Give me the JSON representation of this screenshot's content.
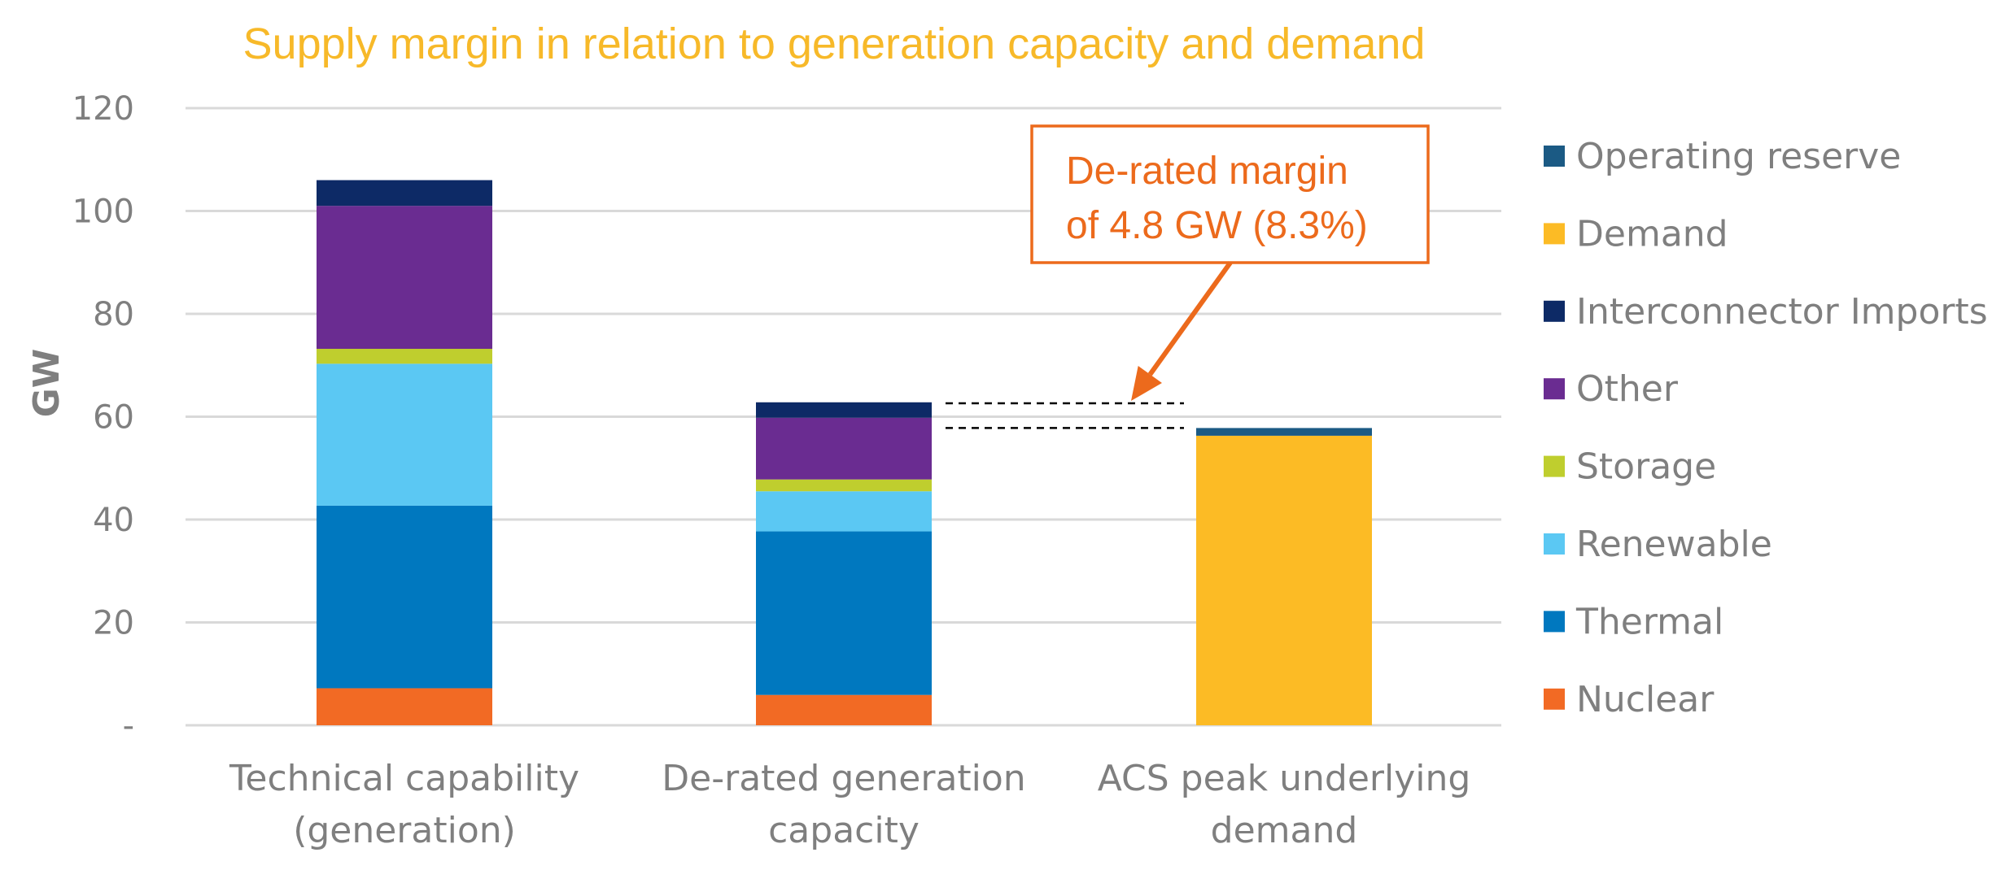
{
  "chart_data": {
    "type": "bar",
    "stacked": true,
    "title": "Supply margin in relation to generation capacity and demand",
    "ylabel": "GW",
    "ylim": [
      0,
      120
    ],
    "yticks": [
      0,
      20,
      40,
      60,
      80,
      100,
      120
    ],
    "ytick_labels": [
      "-",
      "20",
      "40",
      "60",
      "80",
      "100",
      "120"
    ],
    "grid": true,
    "legend_position": "right",
    "categories": [
      [
        "Technical capability",
        "(generation)"
      ],
      [
        "De-rated generation",
        "capacity"
      ],
      [
        "ACS peak underlying",
        "demand"
      ]
    ],
    "series": [
      {
        "name": "Nuclear",
        "color": "#f26a24",
        "values": [
          7.2,
          5.9,
          0
        ]
      },
      {
        "name": "Thermal",
        "color": "#0078bf",
        "values": [
          35.5,
          31.8,
          0
        ]
      },
      {
        "name": "Renewable",
        "color": "#5bc8f3",
        "values": [
          27.6,
          7.8,
          0
        ]
      },
      {
        "name": "Storage",
        "color": "#bfce2e",
        "values": [
          2.9,
          2.3,
          0
        ]
      },
      {
        "name": "Other",
        "color": "#6a2c91",
        "values": [
          27.8,
          12.0,
          0
        ]
      },
      {
        "name": "Interconnector Imports",
        "color": "#0d2a66",
        "values": [
          5.0,
          3.0,
          0
        ]
      },
      {
        "name": "Demand",
        "color": "#fcbb25",
        "values": [
          0,
          0,
          56.3
        ]
      },
      {
        "name": "Operating reserve",
        "color": "#1b5a84",
        "values": [
          0,
          0,
          1.5
        ]
      }
    ],
    "annotation": {
      "lines": [
        "De-rated margin",
        "of 4.8 GW (8.3%)"
      ],
      "color": "#ec6a1c",
      "upper_level": 62.6,
      "lower_level": 57.8
    },
    "colors": {
      "title": "#f7b929",
      "text": "#7f7f7f",
      "grid": "#d9d9d9"
    }
  }
}
